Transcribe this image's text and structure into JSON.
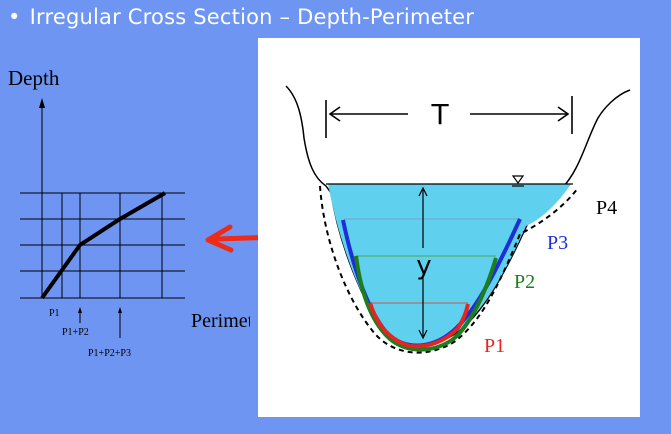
{
  "slide": {
    "bullet": "•",
    "title": "Irregular Cross Section – Depth-Perimeter"
  },
  "graph": {
    "y_label": "Depth",
    "x_label": "Perimeter",
    "ticks": [
      "P1",
      "P1+P2",
      "P1+P2+P3"
    ]
  },
  "section": {
    "top_width_label": "T",
    "depth_label": "y",
    "perimeter_labels": [
      "P1",
      "P2",
      "P3",
      "P4"
    ],
    "colors": {
      "water": "#5fd0ee",
      "p1": "#e8241e",
      "p2": "#1e7d1e",
      "p3": "#1f2fd8",
      "p4": "#000000",
      "arrow": "#ee2b16"
    }
  }
}
